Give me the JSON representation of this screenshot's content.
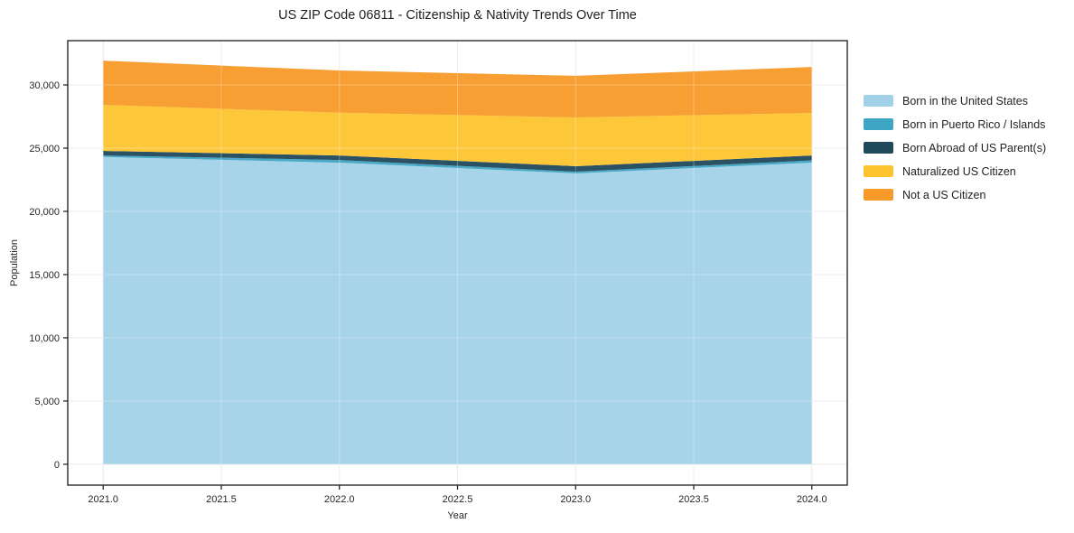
{
  "chart_data": {
    "type": "area",
    "stacked": true,
    "title": "US ZIP Code 06811 - Citizenship & Nativity Trends Over Time",
    "xlabel": "Year",
    "ylabel": "Population",
    "x": [
      2021,
      2022,
      2023,
      2024
    ],
    "xlim": [
      2020.85,
      2024.15
    ],
    "ylim": [
      -1650,
      33500
    ],
    "x_tick_values": [
      2021,
      2021.5,
      2022,
      2022.5,
      2023,
      2023.5,
      2024
    ],
    "x_ticks": [
      "2021.0",
      "2021.5",
      "2022.0",
      "2022.5",
      "2023.0",
      "2023.5",
      "2024.0"
    ],
    "y_tick_values": [
      0,
      5000,
      10000,
      15000,
      20000,
      25000,
      30000
    ],
    "y_ticks": [
      "0",
      "5,000",
      "10,000",
      "15,000",
      "20,000",
      "25,000",
      "30,000"
    ],
    "grid": true,
    "legend_position": "right",
    "colors": {
      "grid": "#e4e4e4",
      "axis": "#1a1a1a",
      "background": "#ffffff",
      "tick_label": "#262626"
    },
    "fill_opacity": 0.95,
    "series": [
      {
        "name": "Born in the United States",
        "color": "#a3d2e8",
        "values": [
          24300,
          23850,
          23000,
          23850
        ]
      },
      {
        "name": "Born in Puerto Rico / Islands",
        "color": "#3fa5c4",
        "values": [
          120,
          210,
          140,
          180
        ]
      },
      {
        "name": "Born Abroad of US Parent(s)",
        "color": "#20495c",
        "values": [
          360,
          360,
          430,
          390
        ]
      },
      {
        "name": "Naturalized US Citizen",
        "color": "#fdc42f",
        "values": [
          3640,
          3380,
          3860,
          3360
        ]
      },
      {
        "name": "Not a US Citizen",
        "color": "#f89a28",
        "values": [
          3500,
          3340,
          3290,
          3640
        ]
      }
    ]
  }
}
